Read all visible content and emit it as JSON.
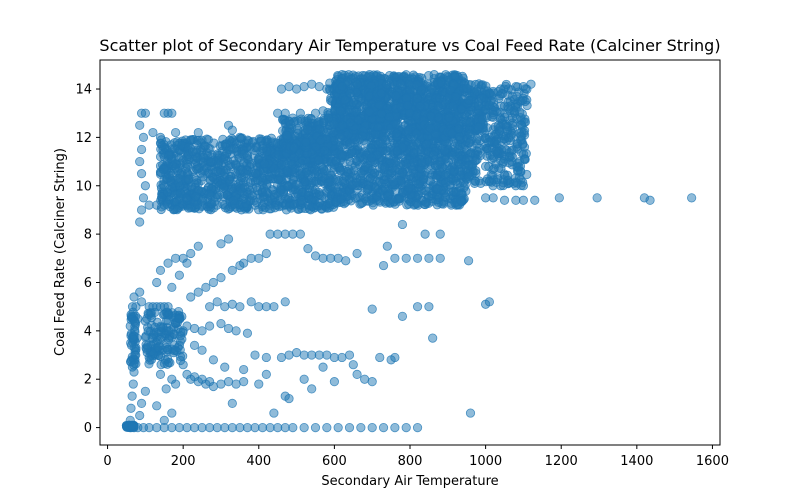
{
  "chart_data": {
    "type": "scatter",
    "title": "Scatter plot of Secondary Air Temperature vs Coal Feed Rate (Calciner String)",
    "xlabel": "Secondary Air Temperature",
    "ylabel": "Coal Feed Rate (Calciner String)",
    "xlim": [
      -20,
      1620
    ],
    "ylim": [
      -0.72,
      15.2
    ],
    "xticks": [
      0,
      200,
      400,
      600,
      800,
      1000,
      1200,
      1400,
      1600
    ],
    "yticks": [
      0,
      2,
      4,
      6,
      8,
      10,
      12,
      14
    ],
    "grid": false,
    "legend": "none",
    "marker_color": "#1f77b4",
    "marker_alpha": 0.5,
    "series": [
      {
        "points": [
          [
            60,
            0
          ],
          [
            70,
            0
          ],
          [
            80,
            0
          ],
          [
            95,
            0
          ],
          [
            110,
            0
          ],
          [
            130,
            0
          ],
          [
            150,
            0
          ],
          [
            170,
            0
          ],
          [
            190,
            0
          ],
          [
            210,
            0
          ],
          [
            230,
            0
          ],
          [
            250,
            0
          ],
          [
            270,
            0
          ],
          [
            290,
            0
          ],
          [
            310,
            0
          ],
          [
            330,
            0
          ],
          [
            350,
            0
          ],
          [
            370,
            0
          ],
          [
            390,
            0
          ],
          [
            410,
            0
          ],
          [
            430,
            0
          ],
          [
            450,
            0
          ],
          [
            470,
            0
          ],
          [
            490,
            0
          ],
          [
            520,
            0
          ],
          [
            550,
            0
          ],
          [
            580,
            0
          ],
          [
            610,
            0
          ],
          [
            640,
            0
          ],
          [
            670,
            0
          ],
          [
            700,
            0
          ],
          [
            730,
            0
          ],
          [
            760,
            0
          ],
          [
            790,
            0
          ],
          [
            820,
            0
          ],
          [
            960,
            0.6
          ],
          [
            440,
            0.6
          ],
          [
            330,
            1.0
          ],
          [
            470,
            1.3
          ],
          [
            480,
            1.2
          ],
          [
            60,
            0.3
          ],
          [
            62,
            0.8
          ],
          [
            65,
            1.3
          ],
          [
            68,
            1.8
          ],
          [
            70,
            2.3
          ],
          [
            72,
            2.8
          ],
          [
            75,
            3.3
          ],
          [
            62,
            3.8
          ],
          [
            60,
            4.2
          ],
          [
            63,
            4.6
          ],
          [
            66,
            5.0
          ],
          [
            70,
            5.4
          ],
          [
            75,
            5.0
          ],
          [
            80,
            4.5
          ],
          [
            78,
            3.7
          ],
          [
            85,
            5.6
          ],
          [
            90,
            5.2
          ],
          [
            100,
            4.4
          ],
          [
            110,
            5.0
          ],
          [
            120,
            5.0
          ],
          [
            130,
            5.0
          ],
          [
            140,
            5.0
          ],
          [
            150,
            5.0
          ],
          [
            160,
            5.0
          ],
          [
            170,
            4.6
          ],
          [
            180,
            4.3
          ],
          [
            165,
            3.8
          ],
          [
            155,
            3.5
          ],
          [
            145,
            3.2
          ],
          [
            135,
            3.0
          ],
          [
            125,
            3.0
          ],
          [
            115,
            3.0
          ],
          [
            105,
            3.1
          ],
          [
            175,
            3.1
          ],
          [
            190,
            3.4
          ],
          [
            200,
            2.6
          ],
          [
            210,
            2.2
          ],
          [
            220,
            2.0
          ],
          [
            230,
            2.1
          ],
          [
            240,
            1.9
          ],
          [
            250,
            2.0
          ],
          [
            260,
            1.8
          ],
          [
            270,
            1.9
          ],
          [
            280,
            1.7
          ],
          [
            300,
            1.8
          ],
          [
            320,
            1.9
          ],
          [
            340,
            1.8
          ],
          [
            360,
            1.9
          ],
          [
            400,
            1.8
          ],
          [
            140,
            2.2
          ],
          [
            155,
            1.6
          ],
          [
            170,
            2.0
          ],
          [
            180,
            1.8
          ],
          [
            100,
            1.5
          ],
          [
            90,
            1.0
          ],
          [
            85,
            0.5
          ],
          [
            170,
            0.6
          ],
          [
            130,
            0.9
          ],
          [
            150,
            0.3
          ],
          [
            200,
            4.0
          ],
          [
            210,
            4.2
          ],
          [
            230,
            4.1
          ],
          [
            250,
            4.0
          ],
          [
            270,
            4.2
          ],
          [
            300,
            4.3
          ],
          [
            320,
            4.1
          ],
          [
            340,
            4.0
          ],
          [
            370,
            3.9
          ],
          [
            390,
            3.0
          ],
          [
            420,
            2.9
          ],
          [
            460,
            2.9
          ],
          [
            480,
            3.0
          ],
          [
            500,
            3.1
          ],
          [
            520,
            3.0
          ],
          [
            540,
            3.0
          ],
          [
            560,
            3.0
          ],
          [
            580,
            3.0
          ],
          [
            600,
            2.9
          ],
          [
            620,
            2.9
          ],
          [
            640,
            3.0
          ],
          [
            650,
            2.6
          ],
          [
            660,
            2.2
          ],
          [
            680,
            2.0
          ],
          [
            700,
            1.9
          ],
          [
            720,
            2.9
          ],
          [
            750,
            2.8
          ],
          [
            760,
            2.9
          ],
          [
            600,
            1.9
          ],
          [
            570,
            2.5
          ],
          [
            540,
            1.6
          ],
          [
            520,
            2.0
          ],
          [
            420,
            2.2
          ],
          [
            360,
            2.4
          ],
          [
            310,
            2.5
          ],
          [
            280,
            2.8
          ],
          [
            250,
            3.2
          ],
          [
            230,
            3.4
          ],
          [
            270,
            5.0
          ],
          [
            290,
            5.2
          ],
          [
            310,
            5.0
          ],
          [
            330,
            5.1
          ],
          [
            350,
            5.0
          ],
          [
            380,
            5.2
          ],
          [
            400,
            5.0
          ],
          [
            420,
            5.0
          ],
          [
            440,
            5.0
          ],
          [
            470,
            5.2
          ],
          [
            220,
            5.4
          ],
          [
            240,
            5.6
          ],
          [
            260,
            5.8
          ],
          [
            280,
            6.0
          ],
          [
            300,
            6.2
          ],
          [
            330,
            6.5
          ],
          [
            350,
            6.7
          ],
          [
            360,
            6.8
          ],
          [
            380,
            7.0
          ],
          [
            400,
            7.0
          ],
          [
            420,
            7.2
          ],
          [
            300,
            7.6
          ],
          [
            320,
            7.8
          ],
          [
            240,
            7.5
          ],
          [
            220,
            7.2
          ],
          [
            200,
            7.0
          ],
          [
            180,
            7.0
          ],
          [
            160,
            6.8
          ],
          [
            140,
            6.5
          ],
          [
            130,
            6.0
          ],
          [
            170,
            5.8
          ],
          [
            190,
            6.3
          ],
          [
            210,
            6.8
          ],
          [
            430,
            8.0
          ],
          [
            450,
            8.0
          ],
          [
            470,
            8.0
          ],
          [
            490,
            8.0
          ],
          [
            510,
            8.0
          ],
          [
            530,
            7.4
          ],
          [
            550,
            7.1
          ],
          [
            570,
            7.0
          ],
          [
            590,
            7.0
          ],
          [
            610,
            7.0
          ],
          [
            630,
            6.9
          ],
          [
            660,
            7.2
          ],
          [
            700,
            4.9
          ],
          [
            730,
            6.7
          ],
          [
            760,
            7.0
          ],
          [
            790,
            7.0
          ],
          [
            820,
            7.0
          ],
          [
            850,
            7.0
          ],
          [
            880,
            7.0
          ],
          [
            780,
            4.6
          ],
          [
            820,
            5.0
          ],
          [
            850,
            5.0
          ],
          [
            860,
            3.7
          ],
          [
            955,
            6.9
          ],
          [
            1000,
            5.1
          ],
          [
            1010,
            5.2
          ],
          [
            740,
            7.5
          ],
          [
            780,
            8.4
          ],
          [
            840,
            8.0
          ],
          [
            880,
            8.0
          ],
          [
            85,
            8.5
          ],
          [
            90,
            9.0
          ],
          [
            95,
            9.5
          ],
          [
            100,
            10.0
          ],
          [
            90,
            10.5
          ],
          [
            85,
            11.0
          ],
          [
            90,
            11.5
          ],
          [
            95,
            12.0
          ],
          [
            85,
            12.5
          ],
          [
            90,
            13.0
          ],
          [
            100,
            13.0
          ],
          [
            120,
            12.2
          ],
          [
            140,
            12.0
          ],
          [
            150,
            13.0
          ],
          [
            160,
            13.0
          ],
          [
            170,
            13.0
          ],
          [
            180,
            12.2
          ],
          [
            110,
            9.2
          ],
          [
            130,
            9.2
          ],
          [
            150,
            9.2
          ],
          [
            170,
            9.2
          ],
          [
            190,
            9.2
          ],
          [
            210,
            9.2
          ],
          [
            230,
            9.2
          ],
          [
            250,
            9.2
          ],
          [
            270,
            9.2
          ],
          [
            290,
            9.2
          ],
          [
            310,
            9.2
          ],
          [
            330,
            9.2
          ],
          [
            350,
            9.2
          ],
          [
            370,
            9.2
          ],
          [
            390,
            9.2
          ],
          [
            410,
            9.2
          ],
          [
            430,
            9.2
          ],
          [
            450,
            9.2
          ],
          [
            470,
            9.2
          ],
          [
            490,
            9.2
          ],
          [
            510,
            9.2
          ],
          [
            530,
            9.2
          ],
          [
            550,
            9.2
          ],
          [
            570,
            9.2
          ],
          [
            590,
            9.2
          ],
          [
            1000,
            9.5
          ],
          [
            1020,
            9.5
          ],
          [
            1050,
            9.4
          ],
          [
            1080,
            9.4
          ],
          [
            1100,
            9.4
          ],
          [
            1130,
            9.4
          ],
          [
            1195,
            9.5
          ],
          [
            1295,
            9.5
          ],
          [
            1420,
            9.5
          ],
          [
            1435,
            9.4
          ],
          [
            1545,
            9.5
          ],
          [
            1000,
            13.8
          ],
          [
            1020,
            13.9
          ],
          [
            1040,
            14.0
          ],
          [
            1060,
            14.0
          ],
          [
            1080,
            14.1
          ],
          [
            1100,
            14.1
          ],
          [
            1120,
            14.2
          ],
          [
            1010,
            12.0
          ],
          [
            1030,
            11.5
          ],
          [
            1050,
            11.1
          ],
          [
            1070,
            11.0
          ],
          [
            1090,
            11.0
          ],
          [
            1000,
            10.8
          ],
          [
            1010,
            10.2
          ],
          [
            1040,
            10.0
          ],
          [
            1060,
            10.1
          ],
          [
            1080,
            10.0
          ],
          [
            1100,
            10.0
          ],
          [
            450,
            13.0
          ],
          [
            470,
            13.0
          ],
          [
            490,
            12.8
          ],
          [
            510,
            13.0
          ],
          [
            530,
            12.6
          ],
          [
            550,
            13.0
          ],
          [
            570,
            13.1
          ],
          [
            590,
            13.0
          ],
          [
            610,
            13.0
          ],
          [
            630,
            12.9
          ],
          [
            460,
            14.0
          ],
          [
            480,
            14.1
          ],
          [
            500,
            14.0
          ],
          [
            520,
            14.1
          ],
          [
            540,
            14.2
          ],
          [
            560,
            14.1
          ],
          [
            580,
            14.0
          ],
          [
            600,
            14.0
          ],
          [
            320,
            12.5
          ],
          [
            330,
            12.3
          ],
          [
            350,
            12.0
          ],
          [
            240,
            12.2
          ],
          [
            220,
            11.9
          ],
          [
            200,
            11.6
          ]
        ]
      }
    ]
  }
}
